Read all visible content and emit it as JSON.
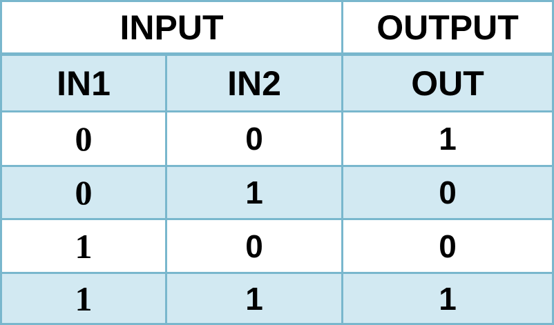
{
  "headers": {
    "input_group": "INPUT",
    "output_group": "OUTPUT",
    "columns": [
      "IN1",
      "IN2",
      "OUT"
    ]
  },
  "rows": [
    [
      "0",
      "0",
      "1"
    ],
    [
      "0",
      "1",
      "0"
    ],
    [
      "1",
      "0",
      "0"
    ],
    [
      "1",
      "1",
      "1"
    ]
  ],
  "colors": {
    "border": "#79b7cd",
    "band_fill": "#d2e9f2",
    "white_fill": "#ffffff",
    "text": "#000000"
  }
}
